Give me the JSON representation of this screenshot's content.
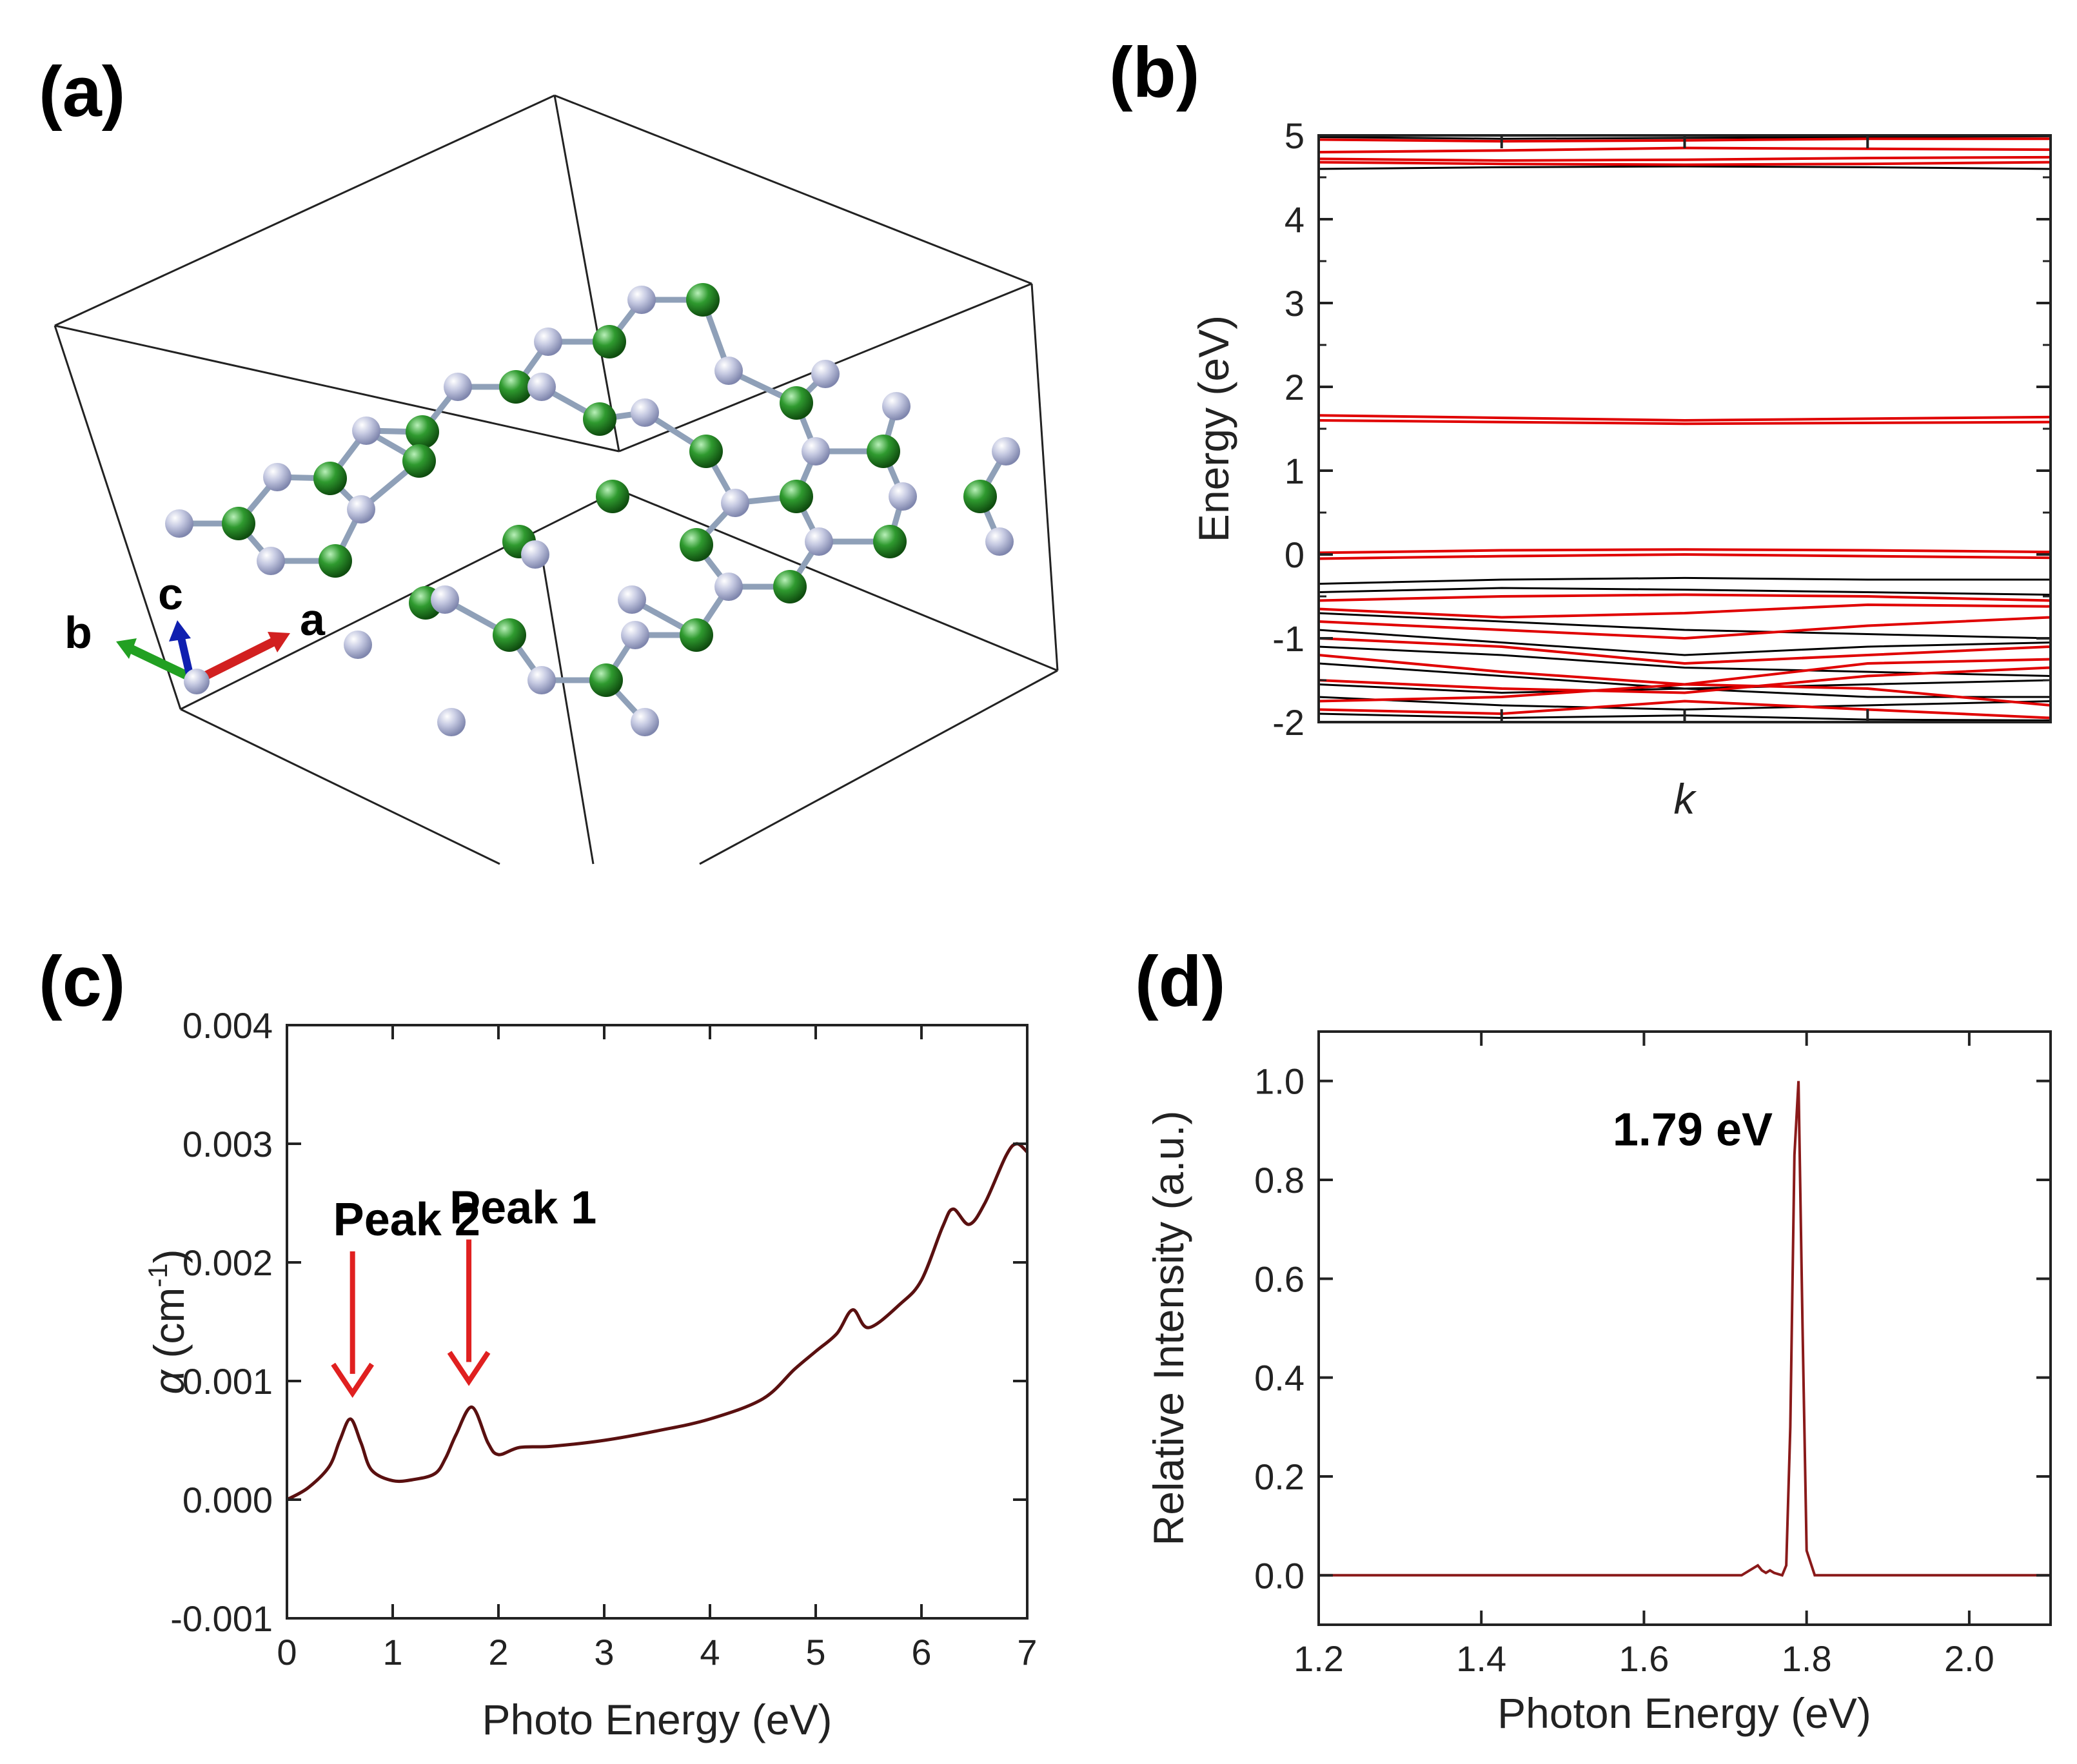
{
  "panel_labels": {
    "a": "(a)",
    "b": "(b)",
    "c": "(c)",
    "d": "(d)"
  },
  "structure": {
    "axis_labels": {
      "a": "a",
      "b": "b",
      "c": "c"
    },
    "colors": {
      "nitrogen": "#b8bcd6",
      "carbon": "#2e8b2e",
      "axis_a": "#d22020",
      "axis_b": "#22a022",
      "axis_c": "#1020b0"
    }
  },
  "chart_data": [
    {
      "panel": "b",
      "type": "line",
      "xlabel": "k",
      "ylabel": "Energy (eV)",
      "ylim": [
        -2,
        5
      ],
      "yticks": [
        "5",
        "4",
        "3",
        "2",
        "1",
        "0",
        "-1",
        "-2"
      ],
      "band_colors": {
        "spin_1": "#e00000",
        "spin_2": "#000000"
      },
      "bands_red": [
        [
          4.95,
          4.93,
          4.94,
          4.96,
          4.96
        ],
        [
          4.8,
          4.82,
          4.85,
          4.84,
          4.83
        ],
        [
          4.72,
          4.7,
          4.71,
          4.73,
          4.74
        ],
        [
          4.68,
          4.66,
          4.65,
          4.66,
          4.68
        ],
        [
          1.66,
          1.63,
          1.6,
          1.62,
          1.64
        ],
        [
          1.6,
          1.58,
          1.56,
          1.57,
          1.58
        ],
        [
          0.02,
          0.05,
          0.06,
          0.05,
          0.03
        ],
        [
          -0.05,
          -0.02,
          0.0,
          -0.02,
          -0.04
        ],
        [
          -0.55,
          -0.5,
          -0.48,
          -0.5,
          -0.55
        ],
        [
          -0.65,
          -0.75,
          -0.7,
          -0.6,
          -0.62
        ],
        [
          -0.8,
          -0.9,
          -1.0,
          -0.85,
          -0.75
        ],
        [
          -1.0,
          -1.1,
          -1.3,
          -1.2,
          -1.1
        ],
        [
          -1.2,
          -1.4,
          -1.55,
          -1.3,
          -1.25
        ],
        [
          -1.5,
          -1.6,
          -1.65,
          -1.45,
          -1.35
        ],
        [
          -1.75,
          -1.7,
          -1.55,
          -1.6,
          -1.8
        ],
        [
          -1.85,
          -1.9,
          -1.75,
          -1.85,
          -1.95
        ]
      ],
      "bands_black": [
        [
          4.98,
          4.96,
          4.97,
          4.98,
          4.99
        ],
        [
          4.6,
          4.62,
          4.63,
          4.62,
          4.6
        ],
        [
          -0.35,
          -0.3,
          -0.28,
          -0.3,
          -0.3
        ],
        [
          -0.45,
          -0.4,
          -0.42,
          -0.45,
          -0.48
        ],
        [
          -0.7,
          -0.8,
          -0.9,
          -0.95,
          -1.0
        ],
        [
          -0.9,
          -1.05,
          -1.2,
          -1.1,
          -1.05
        ],
        [
          -1.1,
          -1.2,
          -1.35,
          -1.4,
          -1.45
        ],
        [
          -1.3,
          -1.45,
          -1.6,
          -1.55,
          -1.5
        ],
        [
          -1.55,
          -1.65,
          -1.6,
          -1.7,
          -1.7
        ],
        [
          -1.7,
          -1.8,
          -1.85,
          -1.8,
          -1.75
        ],
        [
          -1.9,
          -1.95,
          -1.92,
          -1.97,
          -1.98
        ]
      ]
    },
    {
      "panel": "c",
      "type": "line",
      "xlabel": "Photo Energy (eV)",
      "ylabel": "α (cm-1)",
      "ylabel_parts": {
        "symbol": "α",
        "open": " (cm",
        "exp": "-1",
        "close": ")"
      },
      "xlim": [
        0,
        7
      ],
      "ylim": [
        -0.001,
        0.004
      ],
      "xticks": [
        "0",
        "1",
        "2",
        "3",
        "4",
        "5",
        "6",
        "7"
      ],
      "yticks": [
        "0.004",
        "0.003",
        "0.002",
        "0.001",
        "0.000",
        "-0.001"
      ],
      "line_color": "#5a1010",
      "x": [
        0.0,
        0.2,
        0.4,
        0.5,
        0.6,
        0.7,
        0.8,
        1.0,
        1.2,
        1.4,
        1.5,
        1.6,
        1.75,
        1.9,
        2.0,
        2.2,
        2.5,
        3.0,
        3.5,
        4.0,
        4.5,
        4.8,
        5.0,
        5.2,
        5.35,
        5.5,
        5.8,
        6.0,
        6.2,
        6.3,
        6.45,
        6.6,
        6.8,
        6.9,
        7.0
      ],
      "y": [
        0.0,
        0.0001,
        0.00028,
        0.0005,
        0.00068,
        0.00048,
        0.00025,
        0.00016,
        0.00017,
        0.00022,
        0.00035,
        0.00055,
        0.00078,
        0.00048,
        0.00038,
        0.00044,
        0.00045,
        0.0005,
        0.00058,
        0.00068,
        0.00085,
        0.0011,
        0.00125,
        0.0014,
        0.0016,
        0.00145,
        0.00165,
        0.00185,
        0.0023,
        0.00245,
        0.00232,
        0.0025,
        0.0029,
        0.003,
        0.00293
      ],
      "annotations": [
        {
          "text": "Peak 2",
          "x": 0.62,
          "y": 0.00068
        },
        {
          "text": "Peak 1",
          "x": 1.72,
          "y": 0.00078
        }
      ],
      "arrow_color": "#e02020"
    },
    {
      "panel": "d",
      "type": "line",
      "xlabel": "Photon Energy (eV)",
      "ylabel": "Relative Intensity (a.u.)",
      "xlim": [
        1.2,
        2.1
      ],
      "ylim": [
        -0.1,
        1.1
      ],
      "xticks": [
        "1.2",
        "1.4",
        "1.6",
        "1.8",
        "2.0"
      ],
      "yticks": [
        "1.0",
        "0.8",
        "0.6",
        "0.4",
        "0.2",
        "0.0"
      ],
      "line_color": "#8a1a1a",
      "x": [
        1.2,
        1.72,
        1.735,
        1.74,
        1.745,
        1.75,
        1.755,
        1.76,
        1.77,
        1.775,
        1.78,
        1.785,
        1.79,
        1.795,
        1.8,
        1.81,
        2.1
      ],
      "y": [
        0.0,
        0.0,
        0.015,
        0.02,
        0.01,
        0.005,
        0.01,
        0.005,
        0.0,
        0.02,
        0.3,
        0.85,
        1.0,
        0.5,
        0.05,
        0.0,
        0.0
      ],
      "annotations": [
        {
          "text": "1.79 eV",
          "x": 1.79,
          "y": 1.0
        }
      ]
    }
  ]
}
